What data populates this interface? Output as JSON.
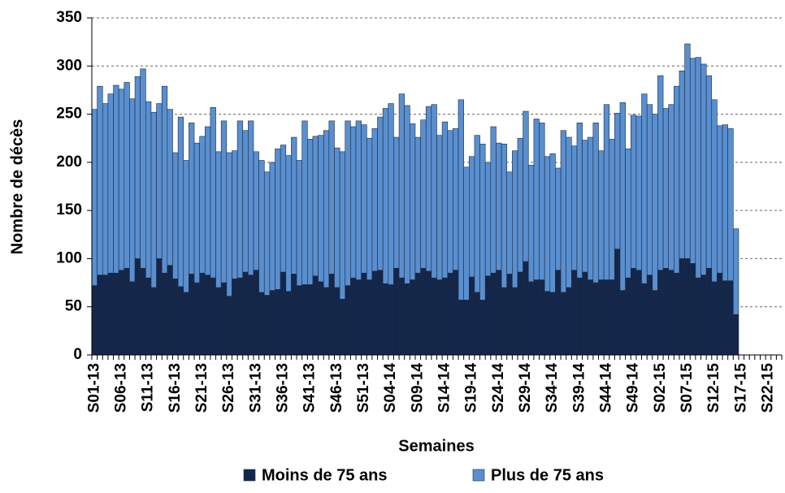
{
  "chart_data": {
    "type": "stacked_bar",
    "y_label": "Nombre de décès",
    "x_label": "Semaines",
    "categories": [
      "S01-13",
      null,
      null,
      null,
      null,
      "S06-13",
      null,
      null,
      null,
      null,
      "S11-13",
      null,
      null,
      null,
      null,
      "S16-13",
      null,
      null,
      null,
      null,
      "S21-13",
      null,
      null,
      null,
      null,
      "S26-13",
      null,
      null,
      null,
      null,
      "S31-13",
      null,
      null,
      null,
      null,
      "S36-13",
      null,
      null,
      null,
      null,
      "S41-13",
      null,
      null,
      null,
      null,
      "S46-13",
      null,
      null,
      null,
      null,
      "S51-13",
      null,
      null,
      null,
      null,
      "S04-14",
      null,
      null,
      null,
      null,
      "S09-14",
      null,
      null,
      null,
      null,
      "S14-14",
      null,
      null,
      null,
      null,
      "S19-14",
      null,
      null,
      null,
      null,
      "S24-14",
      null,
      null,
      null,
      null,
      "S29-14",
      null,
      null,
      null,
      null,
      "S34-14",
      null,
      null,
      null,
      null,
      "S39-14",
      null,
      null,
      null,
      null,
      "S44-14",
      null,
      null,
      null,
      null,
      "S49-14",
      null,
      null,
      null,
      null,
      "S02-15",
      null,
      null,
      null,
      null,
      "S07-15",
      null,
      null,
      null,
      null,
      "S12-15",
      null,
      null,
      null,
      null,
      "S17-15",
      null,
      null,
      null,
      null,
      "S22-15",
      null,
      null
    ],
    "series": [
      {
        "name": "Moins de 75 ans",
        "color": "#14264a",
        "values": [
          72,
          83,
          83,
          85,
          85,
          88,
          90,
          76,
          100,
          90,
          80,
          70,
          100,
          85,
          93,
          79,
          71,
          65,
          84,
          75,
          85,
          83,
          80,
          70,
          75,
          61,
          79,
          80,
          86,
          83,
          88,
          65,
          62,
          67,
          68,
          86,
          66,
          84,
          72,
          73,
          73,
          82,
          76,
          70,
          84,
          70,
          58,
          72,
          80,
          78,
          85,
          78,
          87,
          88,
          74,
          73,
          90,
          80,
          74,
          78,
          85,
          90,
          87,
          80,
          78,
          80,
          85,
          88,
          57,
          57,
          81,
          65,
          57,
          82,
          85,
          88,
          70,
          84,
          70,
          86,
          97,
          76,
          78,
          78,
          66,
          65,
          88,
          65,
          70,
          88,
          80,
          86,
          78,
          75,
          78,
          78,
          78,
          110,
          67,
          80,
          90,
          88,
          74,
          83,
          67,
          88,
          90,
          88,
          85,
          100,
          100,
          95,
          80,
          83,
          90,
          76,
          85,
          77,
          77,
          42,
          null,
          null,
          null,
          null,
          null,
          null,
          null,
          null
        ]
      },
      {
        "name": "Plus de 75 ans",
        "color": "#5a8fcf",
        "values": [
          183,
          196,
          178,
          186,
          195,
          188,
          193,
          190,
          189,
          207,
          183,
          182,
          161,
          194,
          162,
          131,
          176,
          137,
          157,
          145,
          142,
          154,
          177,
          141,
          168,
          149,
          133,
          163,
          147,
          160,
          123,
          137,
          128,
          133,
          146,
          132,
          141,
          142,
          130,
          170,
          151,
          145,
          152,
          163,
          159,
          145,
          153,
          171,
          157,
          165,
          154,
          147,
          148,
          159,
          182,
          188,
          136,
          191,
          185,
          162,
          141,
          154,
          171,
          180,
          150,
          162,
          148,
          147,
          208,
          138,
          125,
          163,
          162,
          118,
          152,
          132,
          149,
          106,
          142,
          139,
          156,
          121,
          167,
          163,
          140,
          144,
          106,
          168,
          156,
          129,
          161,
          137,
          148,
          166,
          134,
          182,
          146,
          141,
          195,
          134,
          159,
          160,
          197,
          177,
          183,
          202,
          166,
          172,
          194,
          195,
          223,
          213,
          229,
          219,
          200,
          189,
          153,
          162,
          158,
          89,
          null,
          null,
          null,
          null,
          null,
          null,
          null,
          null
        ]
      }
    ],
    "ylim": [
      0,
      350
    ],
    "yticks": [
      0,
      50,
      100,
      150,
      200,
      250,
      300,
      350
    ],
    "grid": true,
    "legend": "bottom"
  }
}
